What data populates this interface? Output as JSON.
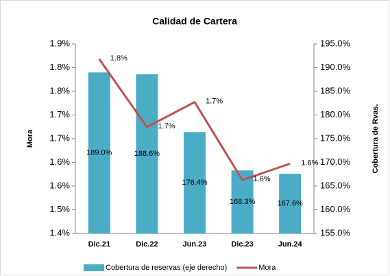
{
  "chart_data": {
    "type": "bar_line",
    "title": "Calidad de Cartera",
    "categories": [
      "Dic.21",
      "Dic.22",
      "Jun.23",
      "Dic.23",
      "Jun.24"
    ],
    "series": [
      {
        "name": "Cobertura de reservas (eje derecho)",
        "type": "bar",
        "axis": "y2",
        "color": "#4bacc6",
        "values": [
          189.0,
          188.6,
          176.4,
          168.3,
          167.6
        ],
        "value_labels": [
          "189.0%",
          "188.6%",
          "176.4%",
          "168.3%",
          "167.6%"
        ]
      },
      {
        "name": "Mora",
        "type": "line",
        "axis": "y",
        "color": "#c0504d",
        "values": [
          1.845,
          1.687,
          1.745,
          1.564,
          1.602
        ],
        "value_labels": [
          "1.8%",
          "1.7%",
          "1.7%",
          "1.6%",
          "1.6%"
        ]
      }
    ],
    "ylabel": "Mora",
    "y2label": "Cobertura de Rvas.",
    "ylim": [
      1.44,
      1.88
    ],
    "yticks": [
      {
        "value": 1.44,
        "label": "1.4%"
      },
      {
        "value": 1.495,
        "label": "1.5%"
      },
      {
        "value": 1.55,
        "label": "1.6%"
      },
      {
        "value": 1.605,
        "label": "1.6%"
      },
      {
        "value": 1.66,
        "label": "1.7%"
      },
      {
        "value": 1.715,
        "label": "1.7%"
      },
      {
        "value": 1.77,
        "label": "1.8%"
      },
      {
        "value": 1.825,
        "label": "1.8%"
      },
      {
        "value": 1.88,
        "label": "1.9%"
      }
    ],
    "y2lim": [
      155,
      195
    ],
    "y2ticks": [
      {
        "value": 155,
        "label": "155.0%"
      },
      {
        "value": 160,
        "label": "160.0%"
      },
      {
        "value": 165,
        "label": "165.0%"
      },
      {
        "value": 170,
        "label": "170.0%"
      },
      {
        "value": 175,
        "label": "175.0%"
      },
      {
        "value": 180,
        "label": "180.0%"
      },
      {
        "value": 185,
        "label": "185.0%"
      },
      {
        "value": 190,
        "label": "190.0%"
      },
      {
        "value": 195,
        "label": "195.0%"
      }
    ]
  }
}
